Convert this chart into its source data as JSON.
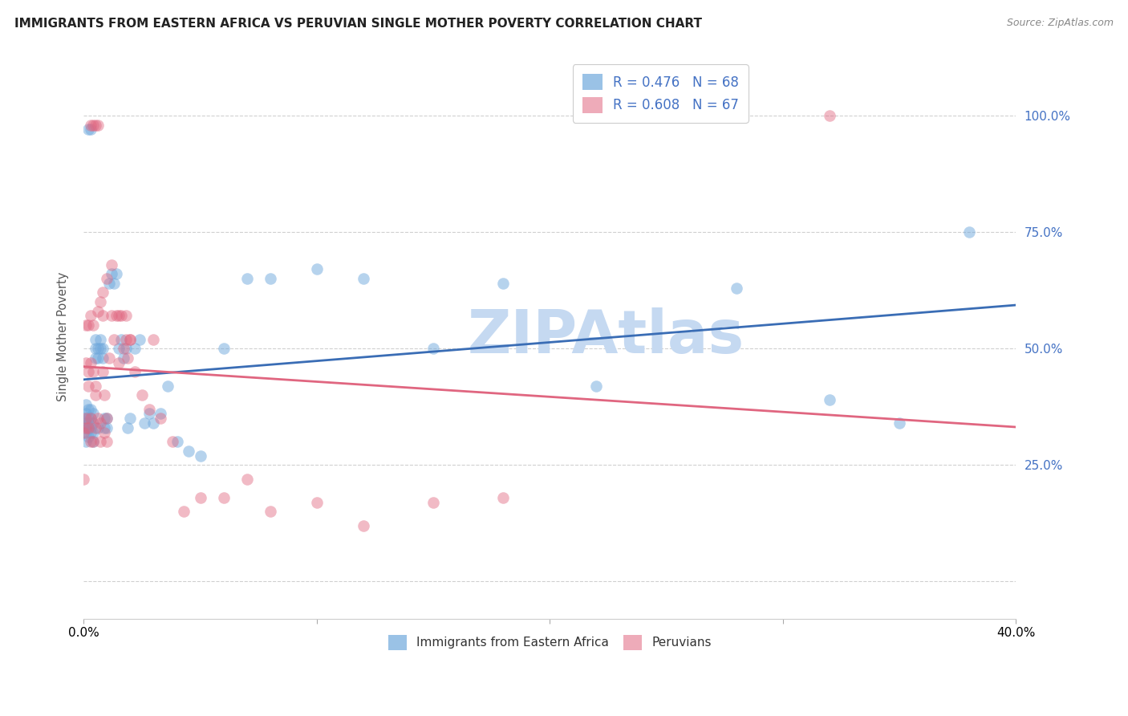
{
  "title": "IMMIGRANTS FROM EASTERN AFRICA VS PERUVIAN SINGLE MOTHER POVERTY CORRELATION CHART",
  "source": "Source: ZipAtlas.com",
  "ylabel": "Single Mother Poverty",
  "xlim": [
    0.0,
    0.4
  ],
  "ylim": [
    -0.08,
    1.13
  ],
  "yticks": [
    0.0,
    0.25,
    0.5,
    0.75,
    1.0
  ],
  "xticks": [
    0.0,
    0.1,
    0.2,
    0.3,
    0.4
  ],
  "blue_R": 0.476,
  "blue_N": 68,
  "pink_R": 0.608,
  "pink_N": 67,
  "blue_color": "#6fa8dc",
  "pink_color": "#e06680",
  "blue_line_color": "#3a6db5",
  "pink_line_color": "#e06680",
  "watermark": "ZIPAtlas",
  "watermark_color": "#c5d9f1",
  "background_color": "#ffffff",
  "grid_color": "#d0d0d0",
  "blue_x": [
    0.0,
    0.0,
    0.001,
    0.001,
    0.001,
    0.001,
    0.001,
    0.002,
    0.002,
    0.002,
    0.002,
    0.002,
    0.003,
    0.003,
    0.003,
    0.003,
    0.004,
    0.004,
    0.004,
    0.004,
    0.005,
    0.005,
    0.005,
    0.006,
    0.006,
    0.006,
    0.007,
    0.007,
    0.008,
    0.008,
    0.009,
    0.009,
    0.01,
    0.01,
    0.011,
    0.012,
    0.013,
    0.014,
    0.015,
    0.016,
    0.017,
    0.018,
    0.019,
    0.02,
    0.022,
    0.024,
    0.026,
    0.028,
    0.03,
    0.033,
    0.036,
    0.04,
    0.045,
    0.05,
    0.06,
    0.07,
    0.08,
    0.1,
    0.12,
    0.15,
    0.18,
    0.22,
    0.28,
    0.32,
    0.35,
    0.38,
    0.002,
    0.003
  ],
  "blue_y": [
    0.33,
    0.35,
    0.32,
    0.34,
    0.36,
    0.38,
    0.3,
    0.33,
    0.35,
    0.37,
    0.31,
    0.34,
    0.32,
    0.35,
    0.37,
    0.33,
    0.34,
    0.36,
    0.3,
    0.32,
    0.48,
    0.5,
    0.52,
    0.48,
    0.5,
    0.33,
    0.5,
    0.52,
    0.48,
    0.5,
    0.33,
    0.35,
    0.33,
    0.35,
    0.64,
    0.66,
    0.64,
    0.66,
    0.5,
    0.52,
    0.48,
    0.5,
    0.33,
    0.35,
    0.5,
    0.52,
    0.34,
    0.36,
    0.34,
    0.36,
    0.42,
    0.3,
    0.28,
    0.27,
    0.5,
    0.65,
    0.65,
    0.67,
    0.65,
    0.5,
    0.64,
    0.42,
    0.63,
    0.39,
    0.34,
    0.75,
    0.97,
    0.97
  ],
  "pink_x": [
    0.0,
    0.0,
    0.001,
    0.001,
    0.001,
    0.001,
    0.002,
    0.002,
    0.002,
    0.002,
    0.003,
    0.003,
    0.003,
    0.003,
    0.004,
    0.004,
    0.004,
    0.005,
    0.005,
    0.005,
    0.006,
    0.006,
    0.007,
    0.007,
    0.008,
    0.008,
    0.009,
    0.009,
    0.01,
    0.01,
    0.011,
    0.012,
    0.013,
    0.014,
    0.015,
    0.016,
    0.017,
    0.018,
    0.019,
    0.02,
    0.022,
    0.025,
    0.028,
    0.03,
    0.033,
    0.038,
    0.043,
    0.05,
    0.06,
    0.07,
    0.08,
    0.1,
    0.12,
    0.15,
    0.18,
    0.003,
    0.004,
    0.005,
    0.006,
    0.007,
    0.008,
    0.01,
    0.012,
    0.015,
    0.018,
    0.02,
    0.32
  ],
  "pink_y": [
    0.32,
    0.22,
    0.33,
    0.35,
    0.47,
    0.55,
    0.33,
    0.42,
    0.45,
    0.55,
    0.3,
    0.35,
    0.47,
    0.57,
    0.3,
    0.45,
    0.55,
    0.33,
    0.4,
    0.42,
    0.35,
    0.58,
    0.3,
    0.34,
    0.45,
    0.57,
    0.32,
    0.4,
    0.3,
    0.35,
    0.48,
    0.57,
    0.52,
    0.57,
    0.47,
    0.57,
    0.5,
    0.57,
    0.48,
    0.52,
    0.45,
    0.4,
    0.37,
    0.52,
    0.35,
    0.3,
    0.15,
    0.18,
    0.18,
    0.22,
    0.15,
    0.17,
    0.12,
    0.17,
    0.18,
    0.98,
    0.98,
    0.98,
    0.98,
    0.6,
    0.62,
    0.65,
    0.68,
    0.57,
    0.52,
    0.52,
    1.0
  ]
}
